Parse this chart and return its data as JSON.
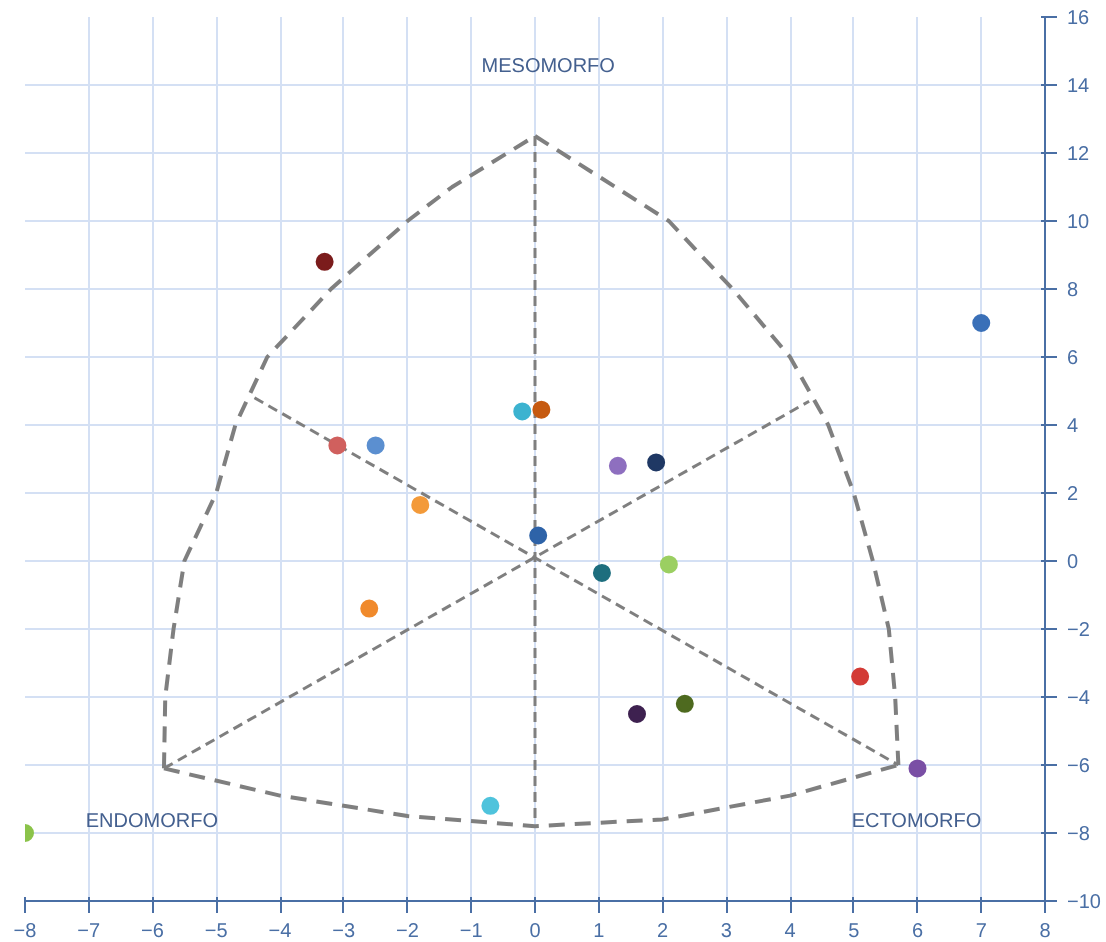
{
  "chart_data": {
    "type": "scatter",
    "xlim": [
      -8,
      8
    ],
    "ylim": [
      -10,
      16
    ],
    "xticks": [
      -8,
      -7,
      -6,
      -5,
      -4,
      -3,
      -2,
      -1,
      0,
      1,
      2,
      3,
      4,
      5,
      6,
      7,
      8
    ],
    "yticks": [
      -10,
      -8,
      -6,
      -4,
      -2,
      0,
      2,
      4,
      6,
      8,
      10,
      12,
      14,
      16
    ],
    "grid": true,
    "marker": "circle",
    "annotations": [
      "MESOMORFO",
      "ENDOMORFO",
      "ECTOMORFO"
    ],
    "series": [
      {
        "type": "line",
        "marker": "none",
        "color": "#7f7f7f",
        "line_style": "dashed",
        "x": [
          -5.82,
          -5.8,
          -5.67,
          -5.5,
          -5.0,
          -4.7,
          -4.2,
          -3.2,
          -2.0,
          -1.3,
          0
        ],
        "values": [
          -6.1,
          -4,
          -2,
          0,
          2,
          4,
          6,
          8,
          10,
          11,
          12.5
        ]
      },
      {
        "type": "line",
        "marker": "none",
        "color": "#7f7f7f",
        "line_style": "dashed",
        "x": [
          0,
          2.1,
          3.1,
          4.0,
          4.6,
          5.0,
          5.3,
          5.55,
          5.65,
          5.7
        ],
        "values": [
          12.5,
          10,
          8,
          6,
          4,
          2,
          0,
          -2,
          -4,
          -6.0
        ]
      },
      {
        "type": "line",
        "marker": "none",
        "color": "#7f7f7f",
        "line_style": "dashed",
        "x": [
          -5.82,
          -4,
          -2,
          0,
          2,
          4,
          5.7
        ],
        "values": [
          -6.1,
          -6.9,
          -7.5,
          -7.8,
          -7.6,
          -6.9,
          -6.0
        ]
      },
      {
        "type": "line",
        "marker": "none",
        "color": "#7f7f7f",
        "line_style": "dotted",
        "x": [
          0,
          0
        ],
        "values": [
          12.5,
          -7.7
        ]
      },
      {
        "type": "line",
        "marker": "none",
        "color": "#7f7f7f",
        "line_style": "dotted",
        "x": [
          -4.4,
          5.7
        ],
        "values": [
          4.8,
          -6.0
        ]
      },
      {
        "type": "line",
        "marker": "none",
        "color": "#7f7f7f",
        "line_style": "dotted",
        "x": [
          -5.82,
          4.3
        ],
        "values": [
          -6.1,
          4.7
        ]
      },
      {
        "x": [
          -3.3,
          7.0,
          -3.1,
          -2.5,
          -0.2,
          0.1,
          1.3,
          1.9,
          -1.8,
          0.05,
          1.05,
          2.1,
          -2.6,
          5.1,
          1.6,
          2.35,
          6.0,
          -0.7,
          -8.0
        ],
        "values": [
          8.8,
          7.0,
          3.4,
          3.4,
          4.4,
          4.45,
          2.8,
          2.9,
          1.65,
          0.75,
          -0.35,
          -0.1,
          -1.4,
          -3.4,
          -4.5,
          -4.2,
          -6.1,
          -7.2,
          -8.0
        ],
        "colors": [
          "#7b1c1c",
          "#3a70b8",
          "#d0605e",
          "#5b8fd0",
          "#3cb3d0",
          "#c65a10",
          "#8e6fbf",
          "#1f3864",
          "#f39a3a",
          "#2e63a8",
          "#1d6e7e",
          "#9bcf62",
          "#f08a2c",
          "#d33b36",
          "#3e2150",
          "#4e6a1f",
          "#7a4fa5",
          "#4fc3dc",
          "#8bc34a"
        ]
      }
    ]
  }
}
